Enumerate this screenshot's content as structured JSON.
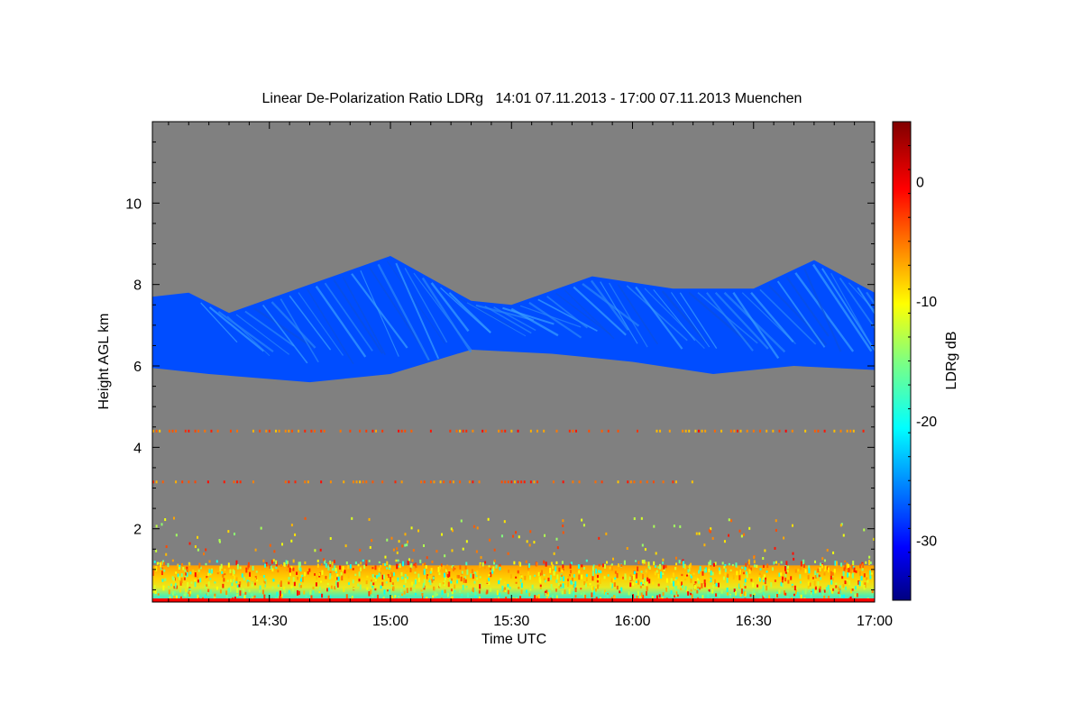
{
  "chart_data": {
    "type": "heatmap",
    "title": "Linear De-Polarization Ratio LDRg   14:01 07.11.2013 - 17:00 07.11.2013 Muenchen",
    "xlabel": "Time UTC",
    "ylabel": "Height AGL km",
    "colorbar_label": "LDRg dB",
    "x_range": [
      "14:01",
      "17:00"
    ],
    "x_ticks": [
      {
        "label": "14:30",
        "t": "14:30"
      },
      {
        "label": "15:00",
        "t": "15:00"
      },
      {
        "label": "15:30",
        "t": "15:30"
      },
      {
        "label": "16:00",
        "t": "16:00"
      },
      {
        "label": "16:30",
        "t": "16:30"
      },
      {
        "label": "17:00",
        "t": "17:00"
      }
    ],
    "ylim": [
      0.2,
      12
    ],
    "y_ticks": [
      {
        "label": "2",
        "v": 2
      },
      {
        "label": "4",
        "v": 4
      },
      {
        "label": "6",
        "v": 6
      },
      {
        "label": "8",
        "v": 8
      },
      {
        "label": "10",
        "v": 10
      }
    ],
    "colorbar_range": [
      -35,
      5
    ],
    "colorbar_ticks": [
      {
        "label": "0",
        "v": 0
      },
      {
        "label": "-10",
        "v": -10
      },
      {
        "label": "-20",
        "v": -20
      },
      {
        "label": "-30",
        "v": -30
      }
    ],
    "background_color": "#808080",
    "features": {
      "cirrus_layer": {
        "ldr_db": -27,
        "base_km": [
          [
            "14:01",
            5.95
          ],
          [
            "14:15",
            5.8
          ],
          [
            "14:40",
            5.6
          ],
          [
            "15:00",
            5.8
          ],
          [
            "15:20",
            6.4
          ],
          [
            "15:40",
            6.3
          ],
          [
            "16:00",
            6.1
          ],
          [
            "16:20",
            5.8
          ],
          [
            "16:40",
            6.0
          ],
          [
            "17:00",
            5.9
          ]
        ],
        "top_km": [
          [
            "14:01",
            7.7
          ],
          [
            "14:10",
            7.8
          ],
          [
            "14:20",
            7.3
          ],
          [
            "14:40",
            8.0
          ],
          [
            "15:00",
            8.7
          ],
          [
            "15:20",
            7.6
          ],
          [
            "15:30",
            7.5
          ],
          [
            "15:50",
            8.2
          ],
          [
            "16:10",
            7.9
          ],
          [
            "16:30",
            7.9
          ],
          [
            "16:45",
            8.6
          ],
          [
            "17:00",
            7.8
          ]
        ]
      },
      "boundary_layer": {
        "base_km": 0.2,
        "top_km": 1.1,
        "ldr_db_range": [
          -20,
          0
        ]
      },
      "aerosol_streaks": [
        {
          "height_km": 4.4,
          "t_start": "14:01",
          "t_end": "17:00"
        },
        {
          "height_km": 3.15,
          "t_start": "14:01",
          "t_end": "16:15"
        }
      ]
    }
  }
}
